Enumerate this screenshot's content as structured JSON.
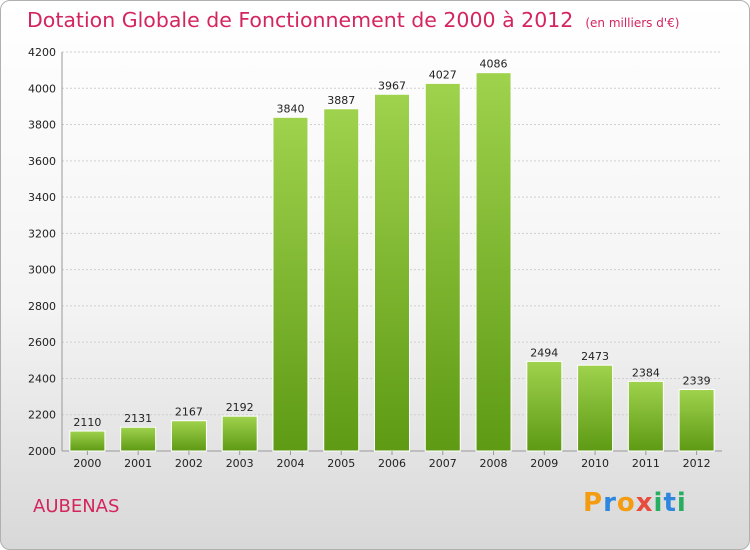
{
  "header": {
    "title": "Dotation Globale de Fonctionnement de 2000 à 2012",
    "unit": "(en milliers d'€)"
  },
  "footer": {
    "city": "AUBENAS",
    "logo_letters": [
      "P",
      "r",
      "o",
      "x",
      "i",
      "t",
      "i"
    ]
  },
  "colors": {
    "title": "#d4255f",
    "bar_light": "#9fd24d",
    "bar_dark": "#5e9a14",
    "grid": "#cfcfcf",
    "logo": [
      "#f39c12",
      "#2e86de",
      "#f39c12",
      "#e74c3c",
      "#27ae60",
      "#2e86de",
      "#27ae60"
    ]
  },
  "chart_data": {
    "type": "bar",
    "categories": [
      "2000",
      "2001",
      "2002",
      "2003",
      "2004",
      "2005",
      "2006",
      "2007",
      "2008",
      "2009",
      "2010",
      "2011",
      "2012"
    ],
    "values": [
      2110,
      2131,
      2167,
      2192,
      3840,
      3887,
      3967,
      4027,
      4086,
      2494,
      2473,
      2384,
      2339
    ],
    "ylim": [
      2000,
      4200
    ],
    "yticks": [
      2000,
      2200,
      2400,
      2600,
      2800,
      3000,
      3200,
      3400,
      3600,
      3800,
      4000,
      4200
    ],
    "grid": true,
    "legend": "none"
  }
}
